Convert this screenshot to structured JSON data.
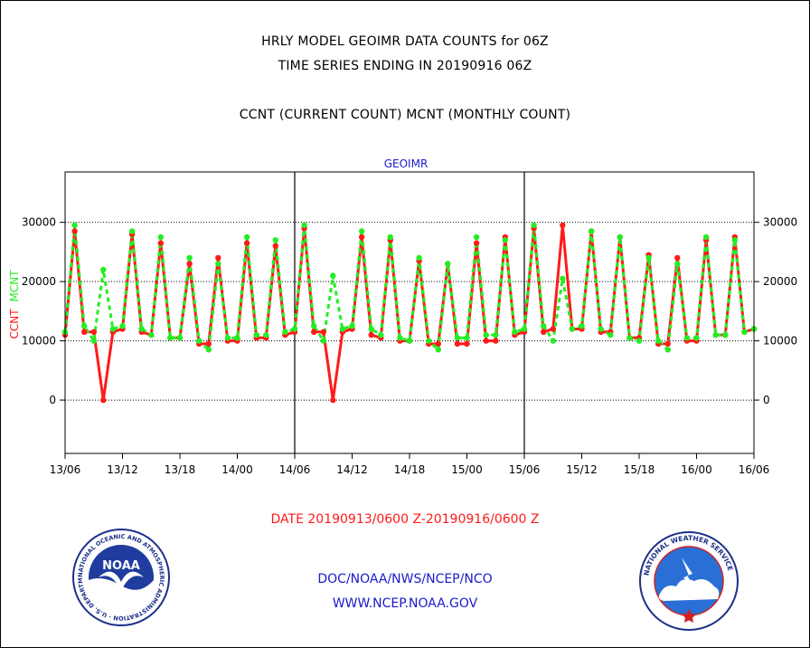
{
  "header": {
    "title_line1": "HRLY MODEL GEOIMR DATA COUNTS for 06Z",
    "title_line2": "TIME SERIES ENDING IN 20190916 06Z",
    "subtitle": "CCNT (CURRENT COUNT) MCNT (MONTHLY COUNT)"
  },
  "footer": {
    "date_range": "DATE 20190913/0600 Z-20190916/0600 Z",
    "org_path": "DOC/NOAA/NWS/NCEP/NCO",
    "website": "WWW.NCEP.NOAA.GOV"
  },
  "logos": {
    "noaa_text": "NOAA",
    "noaa_ring": "NATIONAL OCEANIC AND ATMOSPHERIC ADMINISTRATION · U.S. DEPARTMENT OF COMMERCE",
    "nws_ring": "NATIONAL WEATHER SERVICE"
  },
  "colors": {
    "ccnt": "#ff1a1a",
    "mcnt": "#22ee22",
    "footer_date": "#ff1a1a",
    "footer_links": "#1a1acc",
    "chart_title": "#1a1acc"
  },
  "chart_data": {
    "type": "line",
    "title": "GEOIMR",
    "ylabel_left": [
      "CCNT",
      "MCNT"
    ],
    "ylim": [
      -9000,
      38500
    ],
    "yticks": [
      0,
      10000,
      20000,
      30000
    ],
    "ytick_labels": [
      "0",
      "10000",
      "20000",
      "30000"
    ],
    "xlim": [
      0,
      72
    ],
    "xticks": [
      0,
      6,
      12,
      18,
      24,
      30,
      36,
      42,
      48,
      54,
      60,
      66,
      72
    ],
    "xtick_labels": [
      "13/06",
      "13/12",
      "13/18",
      "14/00",
      "14/06",
      "14/12",
      "14/18",
      "15/00",
      "15/06",
      "15/12",
      "15/18",
      "16/00",
      "16/06"
    ],
    "day_dividers": [
      24,
      48
    ],
    "grid": "horizontal dotted",
    "series": [
      {
        "name": "CCNT",
        "style": "solid",
        "values": [
          11000,
          28500,
          11500,
          11500,
          0,
          11500,
          12000,
          28000,
          11500,
          11000,
          26500,
          10500,
          10500,
          23000,
          9500,
          9500,
          24000,
          10000,
          10000,
          26500,
          10500,
          10500,
          26000,
          11000,
          11500,
          29000,
          11500,
          11500,
          0,
          11500,
          12000,
          27500,
          11000,
          10500,
          27000,
          10000,
          10000,
          23500,
          9500,
          9500,
          23000,
          9500,
          9500,
          26500,
          10000,
          10000,
          27500,
          11000,
          11500,
          29000,
          11500,
          12000,
          29500,
          12000,
          12000,
          28500,
          11500,
          11500,
          27500,
          10500,
          10500,
          24500,
          9500,
          9500,
          24000,
          10000,
          10000,
          27000,
          11000,
          11000,
          27500,
          11500,
          12000
        ]
      },
      {
        "name": "MCNT",
        "style": "dashed",
        "values": [
          11500,
          29500,
          12500,
          10000,
          22000,
          12000,
          12500,
          28500,
          12000,
          11000,
          27500,
          10500,
          10500,
          24000,
          10000,
          8500,
          23000,
          10500,
          10500,
          27500,
          11000,
          11000,
          27000,
          11500,
          12000,
          29500,
          12500,
          10000,
          21000,
          12000,
          12500,
          28500,
          12000,
          11000,
          27500,
          10500,
          10000,
          24000,
          10000,
          8500,
          23000,
          10500,
          10500,
          27500,
          11000,
          11000,
          27000,
          11500,
          12000,
          29500,
          12500,
          10000,
          20500,
          12000,
          12500,
          28500,
          12000,
          11000,
          27500,
          10500,
          10000,
          24000,
          10000,
          8500,
          23000,
          10500,
          10500,
          27500,
          11000,
          11000,
          27000,
          11500,
          12000
        ]
      }
    ]
  }
}
